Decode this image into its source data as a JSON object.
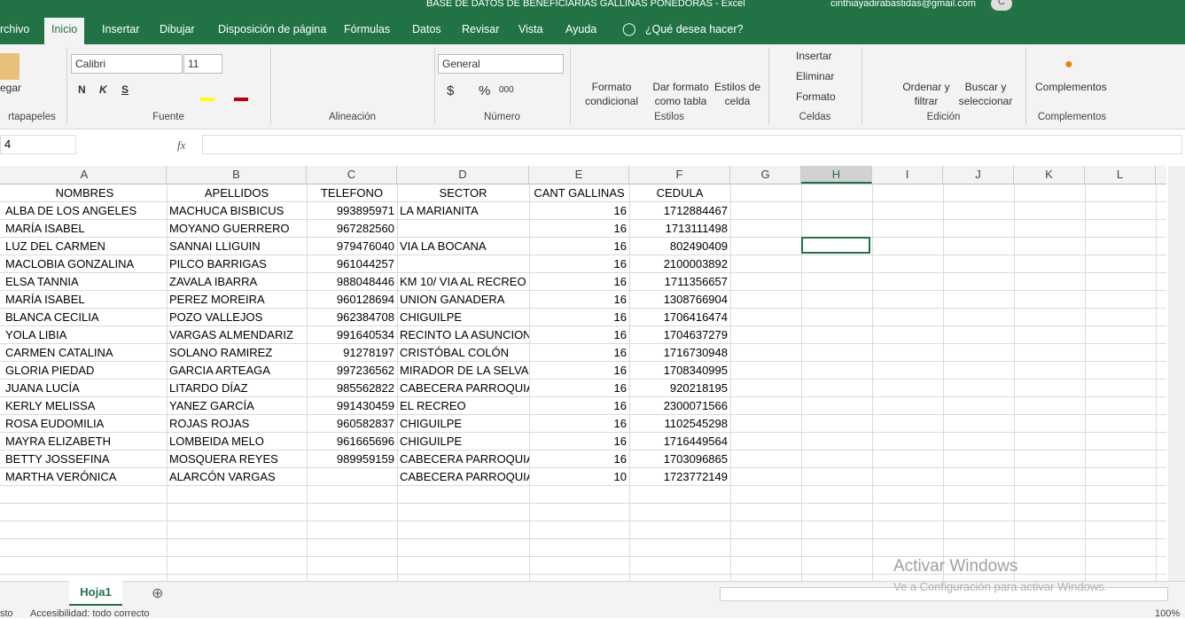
{
  "title_bar": {
    "title": "BASE DE DATOS DE BENEFICIARIAS GALLINAS PONEDORAS  -  Excel",
    "user": "cinthiayadirabastidas@gmail.com",
    "avatar": "C"
  },
  "tabs": [
    "rchivo",
    "Inicio",
    "Insertar",
    "Dibujar",
    "Disposición de página",
    "Fórmulas",
    "Datos",
    "Revisar",
    "Vista",
    "Ayuda"
  ],
  "tell_me": "¿Qué desea hacer?",
  "ribbon": {
    "paste": "egar",
    "font": "Calibri",
    "font_size": "11",
    "bold": "N",
    "italic": "K",
    "underline": "S",
    "number_format": "General",
    "currency": "$",
    "percent": "%",
    "thousands": "000",
    "styles": [
      [
        "Formato",
        "condicional"
      ],
      [
        "Dar formato",
        "como tabla"
      ],
      [
        "Estilos de",
        "celda"
      ]
    ],
    "cells": [
      "Insertar",
      "Eliminar",
      "Formato"
    ],
    "editing": [
      [
        "Ordenar y",
        "filtrar"
      ],
      [
        "Buscar y",
        "seleccionar"
      ]
    ],
    "addins": "Complementos",
    "groups": [
      "rtapapeles",
      "Fuente",
      "Alineación",
      "Número",
      "Estilos",
      "Celdas",
      "Edición",
      "Complementos"
    ]
  },
  "formula_bar": {
    "name_box": "4",
    "fx": "fx"
  },
  "columns": [
    "A",
    "B",
    "C",
    "D",
    "E",
    "F",
    "G",
    "H",
    "I",
    "J",
    "K",
    "L"
  ],
  "table": {
    "header": [
      "NOMBRES",
      "APELLIDOS",
      "TELEFONO",
      "SECTOR",
      "CANT GALLINAS",
      "CEDULA"
    ],
    "rows": [
      [
        "ALBA DE LOS ANGELES",
        "MACHUCA BISBICUS",
        993895971,
        "LA MARIANITA",
        16,
        1712884467
      ],
      [
        "MARÍA ISABEL",
        "MOYANO GUERRERO",
        967282560,
        null,
        16,
        1713111498
      ],
      [
        "LUZ DEL CARMEN",
        "SANNAI LLIGUIN",
        979476040,
        "VIA LA BOCANA",
        16,
        802490409
      ],
      [
        "MACLOBIA GONZALINA",
        "PILCO BARRIGAS",
        961044257,
        null,
        16,
        2100003892
      ],
      [
        "ELSA TANNIA",
        "ZAVALA IBARRA",
        988048446,
        "KM 10/ VIA AL RECREO",
        16,
        1711356657
      ],
      [
        "MARÍA ISABEL",
        "PEREZ MOREIRA",
        960128694,
        "UNION GANADERA",
        16,
        1308766904
      ],
      [
        "BLANCA CECILIA",
        "POZO VALLEJOS",
        962384708,
        "CHIGUILPE",
        16,
        1706416474
      ],
      [
        "YOLA LIBIA",
        "VARGAS ALMENDARIZ",
        991640534,
        "RECINTO LA ASUNCION",
        16,
        1704637279
      ],
      [
        "CARMEN CATALINA",
        "SOLANO RAMIREZ",
        91278197,
        "CRISTÓBAL COLÓN",
        16,
        1716730948
      ],
      [
        "GLORIA PIEDAD",
        "GARCIA ARTEAGA",
        997236562,
        "MIRADOR DE LA SELVA",
        16,
        1708340995
      ],
      [
        "JUANA LUCÍA",
        "LITARDO DÍAZ",
        985562822,
        "CABECERA PARROQUIAL",
        16,
        920218195
      ],
      [
        "KERLY MELISSA",
        "YANEZ GARCÍA",
        991430459,
        "EL RECREO",
        16,
        2300071566
      ],
      [
        "ROSA EUDOMILIA",
        "ROJAS ROJAS",
        960582837,
        "CHIGUILPE",
        16,
        1102545298
      ],
      [
        "MAYRA ELIZABETH",
        "LOMBEIDA  MELO",
        961665696,
        "CHIGUILPE",
        16,
        1716449564
      ],
      [
        "BETTY JOSSEFINA",
        "MOSQUERA REYES",
        989959159,
        "CABECERA PARROQUIAL",
        16,
        1703096865
      ],
      [
        "MARTHA VERÓNICA",
        "ALARCÓN VARGAS",
        null,
        "CABECERA PARROQUIAL",
        10,
        1723772149
      ]
    ]
  },
  "sheet_tab": "Hoja1",
  "status": {
    "left": "sto",
    "accessibility": "Accesibilidad: todo correcto",
    "zoom": "100%"
  },
  "watermark": {
    "title": "Activar Windows",
    "text": "Ve a Configuración para activar Windows."
  }
}
